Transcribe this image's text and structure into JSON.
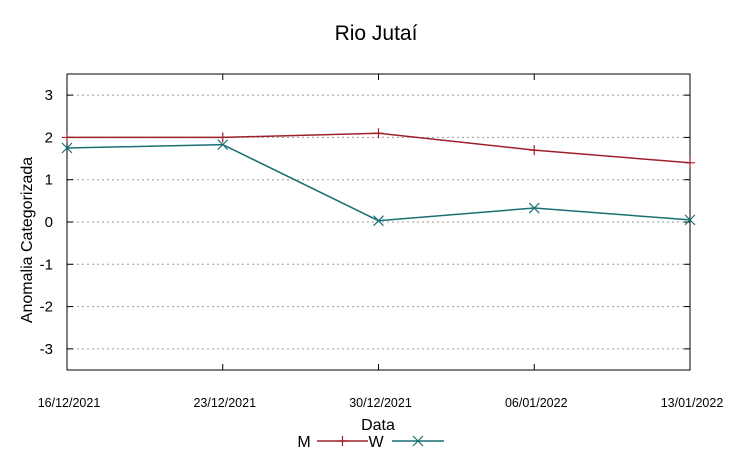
{
  "chart_data": {
    "type": "line",
    "title": "Rio Jutaí",
    "xlabel": "Data",
    "ylabel": "Anomalia Categorizada",
    "categories": [
      "16/12/2021",
      "23/12/2021",
      "30/12/2021",
      "06/01/2022",
      "13/01/2022"
    ],
    "yticks": [
      "3",
      "2",
      "1",
      "0",
      "-1",
      "-2",
      "-3"
    ],
    "ylim": [
      -3.5,
      3.5
    ],
    "grid": "horizontal dotted",
    "legend_position": "bottom",
    "series": [
      {
        "name": "M",
        "values": [
          2.0,
          2.0,
          2.1,
          1.7,
          1.4
        ],
        "color": "#a0202a",
        "marker": "plus"
      },
      {
        "name": "W",
        "values": [
          1.75,
          1.83,
          0.03,
          0.33,
          0.05
        ],
        "color": "#1a6f73",
        "marker": "cross"
      }
    ]
  }
}
